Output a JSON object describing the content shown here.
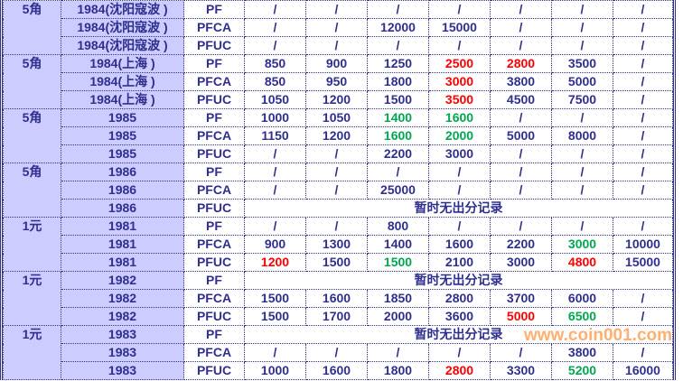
{
  "colors": {
    "text": "#2f2f8f",
    "highlight_bg": "#ccccff",
    "red": "#ff0000",
    "green": "#00a84f",
    "watermark": "#ff9628"
  },
  "watermark": "www.coin001.com",
  "groups": [
    {
      "denomination": "5角",
      "rows": [
        {
          "year": "1984(沈阳寇波 )",
          "grade": "PF",
          "values": [
            {
              "v": "/"
            },
            {
              "v": "/"
            },
            {
              "v": "/"
            },
            {
              "v": "/"
            },
            {
              "v": "/"
            },
            {
              "v": "/"
            },
            {
              "v": "/"
            }
          ]
        },
        {
          "year": "1984(沈阳寇波 )",
          "grade": "PFCA",
          "values": [
            {
              "v": "/"
            },
            {
              "v": "/"
            },
            {
              "v": "12000"
            },
            {
              "v": "15000"
            },
            {
              "v": "/"
            },
            {
              "v": "/"
            },
            {
              "v": "/"
            }
          ]
        },
        {
          "year": "1984(沈阳寇波 )",
          "grade": "PFUC",
          "values": [
            {
              "v": "/"
            },
            {
              "v": "/"
            },
            {
              "v": "/"
            },
            {
              "v": "/"
            },
            {
              "v": "/"
            },
            {
              "v": "/"
            },
            {
              "v": "/"
            }
          ]
        }
      ]
    },
    {
      "denomination": "5角",
      "rows": [
        {
          "year": "1984(上海 )",
          "grade": "PF",
          "values": [
            {
              "v": "850"
            },
            {
              "v": "900"
            },
            {
              "v": "1250"
            },
            {
              "v": "2500",
              "c": "red"
            },
            {
              "v": "2800",
              "c": "red"
            },
            {
              "v": "3500"
            },
            {
              "v": "/"
            }
          ]
        },
        {
          "year": "1984(上海 )",
          "grade": "PFCA",
          "values": [
            {
              "v": "850"
            },
            {
              "v": "950"
            },
            {
              "v": "1800"
            },
            {
              "v": "3000",
              "c": "red"
            },
            {
              "v": "3800"
            },
            {
              "v": "5000"
            },
            {
              "v": "/"
            }
          ]
        },
        {
          "year": "1984(上海 )",
          "grade": "PFUC",
          "values": [
            {
              "v": "1050"
            },
            {
              "v": "1200"
            },
            {
              "v": "1500"
            },
            {
              "v": "3500",
              "c": "red"
            },
            {
              "v": "4500"
            },
            {
              "v": "7500"
            },
            {
              "v": "/"
            }
          ]
        }
      ]
    },
    {
      "denomination": "5角",
      "rows": [
        {
          "year": "1985",
          "grade": "PF",
          "values": [
            {
              "v": "1000"
            },
            {
              "v": "1050"
            },
            {
              "v": "1400",
              "c": "green"
            },
            {
              "v": "1600",
              "c": "green"
            },
            {
              "v": "/"
            },
            {
              "v": "/"
            },
            {
              "v": "/"
            }
          ]
        },
        {
          "year": "1985",
          "grade": "PFCA",
          "values": [
            {
              "v": "1150"
            },
            {
              "v": "1200"
            },
            {
              "v": "1600",
              "c": "green"
            },
            {
              "v": "2000",
              "c": "green"
            },
            {
              "v": "5000"
            },
            {
              "v": "8000"
            },
            {
              "v": "/"
            }
          ]
        },
        {
          "year": "1985",
          "grade": "PFUC",
          "values": [
            {
              "v": "/"
            },
            {
              "v": "/"
            },
            {
              "v": "2200"
            },
            {
              "v": "3000"
            },
            {
              "v": "/"
            },
            {
              "v": "/"
            },
            {
              "v": "/"
            }
          ]
        }
      ]
    },
    {
      "denomination": "5角",
      "rows": [
        {
          "year": "1986",
          "grade": "PF",
          "values": [
            {
              "v": "/"
            },
            {
              "v": "/"
            },
            {
              "v": "/"
            },
            {
              "v": "/"
            },
            {
              "v": "/"
            },
            {
              "v": "/"
            },
            {
              "v": "/"
            }
          ]
        },
        {
          "year": "1986",
          "grade": "PFCA",
          "values": [
            {
              "v": "/"
            },
            {
              "v": "/"
            },
            {
              "v": "25000"
            },
            {
              "v": "/"
            },
            {
              "v": "/"
            },
            {
              "v": "/"
            },
            {
              "v": "/"
            }
          ]
        },
        {
          "year": "1986",
          "grade": "PFUC",
          "note": "暂时无出分记录"
        }
      ]
    },
    {
      "denomination": "1元",
      "rows": [
        {
          "year": "1981",
          "grade": "PF",
          "values": [
            {
              "v": "/"
            },
            {
              "v": "/"
            },
            {
              "v": "800"
            },
            {
              "v": "/"
            },
            {
              "v": "/"
            },
            {
              "v": "/"
            },
            {
              "v": "/"
            }
          ]
        },
        {
          "year": "1981",
          "grade": "PFCA",
          "values": [
            {
              "v": "900"
            },
            {
              "v": "1300"
            },
            {
              "v": "1400"
            },
            {
              "v": "1600"
            },
            {
              "v": "2200"
            },
            {
              "v": "3000",
              "c": "green"
            },
            {
              "v": "10000"
            }
          ]
        },
        {
          "year": "1981",
          "grade": "PFUC",
          "values": [
            {
              "v": "1200",
              "c": "red"
            },
            {
              "v": "1500"
            },
            {
              "v": "1500",
              "c": "green"
            },
            {
              "v": "2100"
            },
            {
              "v": "3000"
            },
            {
              "v": "4800",
              "c": "red"
            },
            {
              "v": "15000"
            }
          ]
        }
      ]
    },
    {
      "denomination": "1元",
      "rows": [
        {
          "year": "1982",
          "grade": "PF",
          "note": "暂时无出分记录"
        },
        {
          "year": "1982",
          "grade": "PFCA",
          "values": [
            {
              "v": "1500"
            },
            {
              "v": "1600"
            },
            {
              "v": "1850"
            },
            {
              "v": "2800"
            },
            {
              "v": "3700"
            },
            {
              "v": "6000"
            },
            {
              "v": "/"
            }
          ]
        },
        {
          "year": "1982",
          "grade": "PFUC",
          "values": [
            {
              "v": "1500"
            },
            {
              "v": "1700"
            },
            {
              "v": "2000"
            },
            {
              "v": "3600"
            },
            {
              "v": "5000",
              "c": "red"
            },
            {
              "v": "6500",
              "c": "green"
            },
            {
              "v": "/"
            }
          ]
        }
      ]
    },
    {
      "denomination": "1元",
      "rows": [
        {
          "year": "1983",
          "grade": "PF",
          "note": "暂时无出分记录"
        },
        {
          "year": "1983",
          "grade": "PFCA",
          "values": [
            {
              "v": "/"
            },
            {
              "v": "/"
            },
            {
              "v": "/"
            },
            {
              "v": "/"
            },
            {
              "v": "/"
            },
            {
              "v": "3800"
            },
            {
              "v": "/"
            }
          ]
        },
        {
          "year": "1983",
          "grade": "PFUC",
          "values": [
            {
              "v": "1000"
            },
            {
              "v": "1600"
            },
            {
              "v": "1800"
            },
            {
              "v": "2800",
              "c": "red"
            },
            {
              "v": "3300"
            },
            {
              "v": "5200",
              "c": "green"
            },
            {
              "v": "16000"
            }
          ]
        }
      ]
    }
  ]
}
